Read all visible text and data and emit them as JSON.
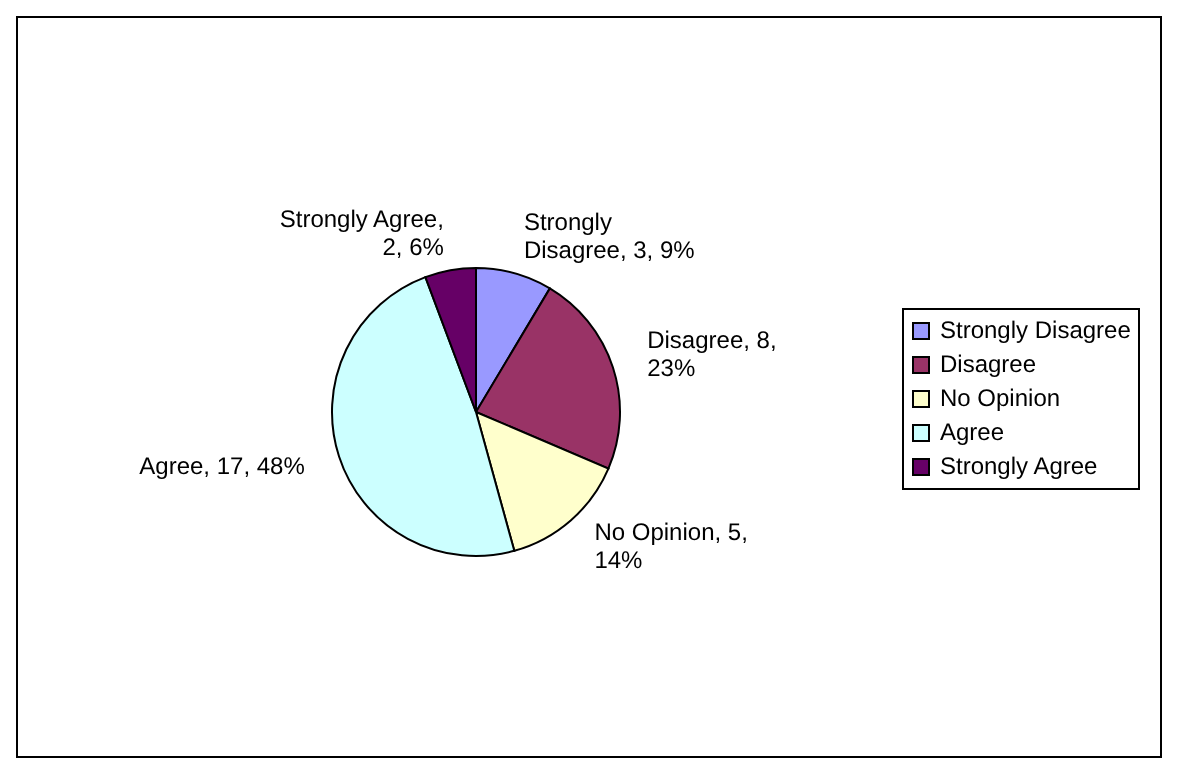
{
  "chart_data": {
    "type": "pie",
    "categories": [
      "Strongly Disagree",
      "Disagree",
      "No Opinion",
      "Agree",
      "Strongly Agree"
    ],
    "values": [
      3,
      8,
      5,
      17,
      2
    ],
    "colors": [
      "#9999ff",
      "#993366",
      "#ffffcc",
      "#ccffff",
      "#660066"
    ],
    "value_labels": [
      "Strongly Disagree, 3, 9%",
      "Disagree, 8, 23%",
      "No Opinion, 5, 14%",
      "Agree, 17, 48%",
      "Strongly Agree, 2, 6%"
    ],
    "legend": "right"
  }
}
